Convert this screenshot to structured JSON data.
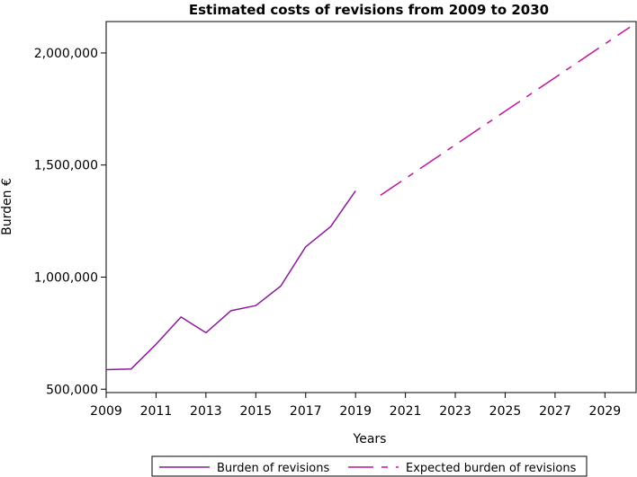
{
  "chart_data": {
    "type": "line",
    "title": "Estimated costs of revisions from 2009 to 2030",
    "xlabel": "Years",
    "ylabel": "Burden €",
    "xlim": [
      2009,
      2030.25
    ],
    "ylim": [
      485000,
      2140000
    ],
    "x_ticks": [
      2009,
      2011,
      2013,
      2015,
      2017,
      2019,
      2021,
      2023,
      2025,
      2027,
      2029
    ],
    "x_tick_labels": [
      "2009",
      "2011",
      "2013",
      "2015",
      "2017",
      "2019",
      "2021",
      "2023",
      "2025",
      "2027",
      "2029"
    ],
    "y_ticks": [
      500000,
      1000000,
      1500000,
      2000000
    ],
    "y_tick_labels": [
      "500,000",
      "1,000,000",
      "1,500,000",
      "2,000,000"
    ],
    "grid": false,
    "legend_position": "bottom",
    "series": [
      {
        "name": "Burden of revisions",
        "color": "#8b1a9b",
        "style": "solid",
        "x": [
          2009,
          2010,
          2011,
          2012,
          2013,
          2014,
          2015,
          2016,
          2017,
          2018,
          2019
        ],
        "values": [
          587000,
          590000,
          700000,
          822000,
          752000,
          850000,
          873000,
          960000,
          1135000,
          1225000,
          1385000
        ]
      },
      {
        "name": "Expected burden of revisions",
        "color": "#c0159a",
        "style": "dashdot",
        "x": [
          2020,
          2030
        ],
        "values": [
          1365000,
          2115000
        ]
      }
    ]
  }
}
